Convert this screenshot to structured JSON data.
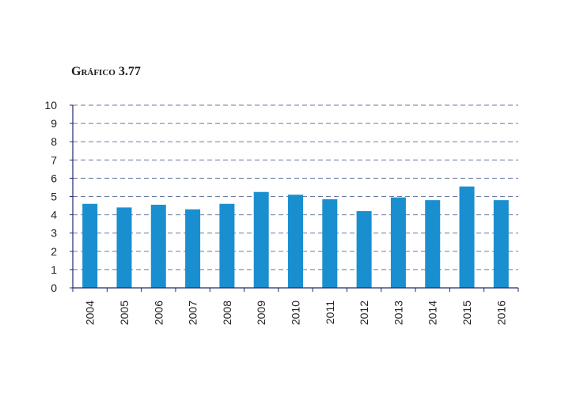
{
  "chart_data": {
    "type": "bar",
    "title": "Gráfico 3.77",
    "categories": [
      "2004",
      "2005",
      "2006",
      "2007",
      "2008",
      "2009",
      "2010",
      "2011",
      "2012",
      "2013",
      "2014",
      "2015",
      "2016"
    ],
    "series": [
      {
        "values": [
          4.6,
          4.4,
          4.55,
          4.3,
          4.6,
          5.25,
          5.1,
          4.85,
          4.2,
          4.95,
          4.8,
          5.55,
          4.8
        ]
      }
    ],
    "ylim": [
      0,
      10
    ],
    "yticks": [
      "0",
      "1",
      "2",
      "3",
      "4",
      "5",
      "6",
      "7",
      "8",
      "9",
      "10"
    ],
    "grid": true,
    "colors": {
      "bar": "#1a8fd0",
      "grid": "#6b7aa3",
      "axis": "#1f2a6b"
    }
  }
}
